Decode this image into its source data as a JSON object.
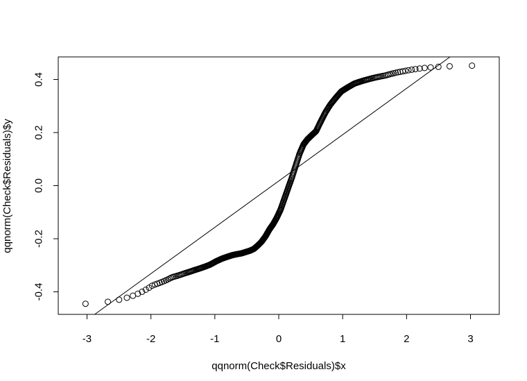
{
  "chart_data": {
    "type": "scatter",
    "title": "",
    "xlabel": "qqnorm(Check$Residuals)$x",
    "ylabel": "qqnorm(Check$Residuals)$y",
    "xlim": [
      -3.45,
      3.45
    ],
    "ylim": [
      -0.485,
      0.485
    ],
    "x_ticks": [
      -3,
      -2,
      -1,
      0,
      1,
      2,
      3
    ],
    "x_tick_labels": [
      "-3",
      "-2",
      "-1",
      "0",
      "1",
      "2",
      "3"
    ],
    "y_ticks": [
      -0.4,
      -0.2,
      0.0,
      0.2,
      0.4
    ],
    "y_tick_labels": [
      "-0.4",
      "-0.2",
      "0.0",
      "0.2",
      "0.4"
    ],
    "grid": false,
    "legend": "none",
    "marker": "open-circle",
    "reference_line": {
      "intercept": 0.0175,
      "slope": 0.1745
    },
    "sample_size": 400,
    "sample_quantiles_sorted": [
      -0.445,
      -0.375,
      -0.345,
      -0.33,
      -0.318,
      -0.308,
      -0.298,
      -0.285,
      -0.275,
      -0.268,
      -0.262,
      -0.258,
      -0.255,
      -0.25,
      -0.245,
      -0.238,
      -0.225,
      -0.21,
      -0.19,
      -0.165,
      -0.145,
      -0.12,
      -0.09,
      -0.05,
      -0.01,
      0.03,
      0.075,
      0.12,
      0.155,
      0.175,
      0.19,
      0.205,
      0.24,
      0.275,
      0.305,
      0.33,
      0.355,
      0.37,
      0.385,
      0.395,
      0.405,
      0.415,
      0.432,
      0.452
    ]
  }
}
